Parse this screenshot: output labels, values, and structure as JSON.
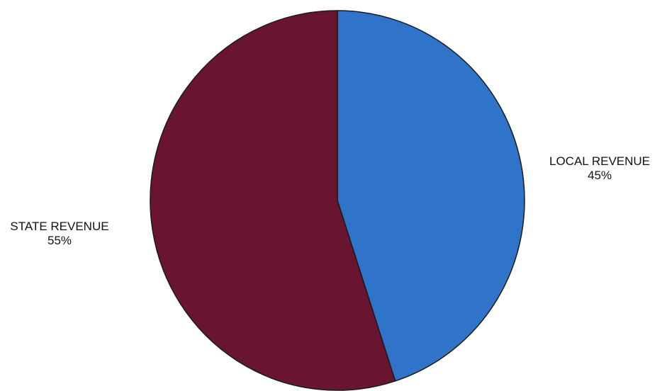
{
  "chart_data": {
    "type": "pie",
    "title": "",
    "slices": [
      {
        "name": "LOCAL REVENUE",
        "value": 45,
        "percent_label": "45%",
        "color": "#2f74c8"
      },
      {
        "name": "STATE REVENUE",
        "value": 55,
        "percent_label": "55%",
        "color": "#6a1530"
      }
    ],
    "start_angle_deg": 0,
    "direction": "clockwise",
    "legend": "none"
  }
}
